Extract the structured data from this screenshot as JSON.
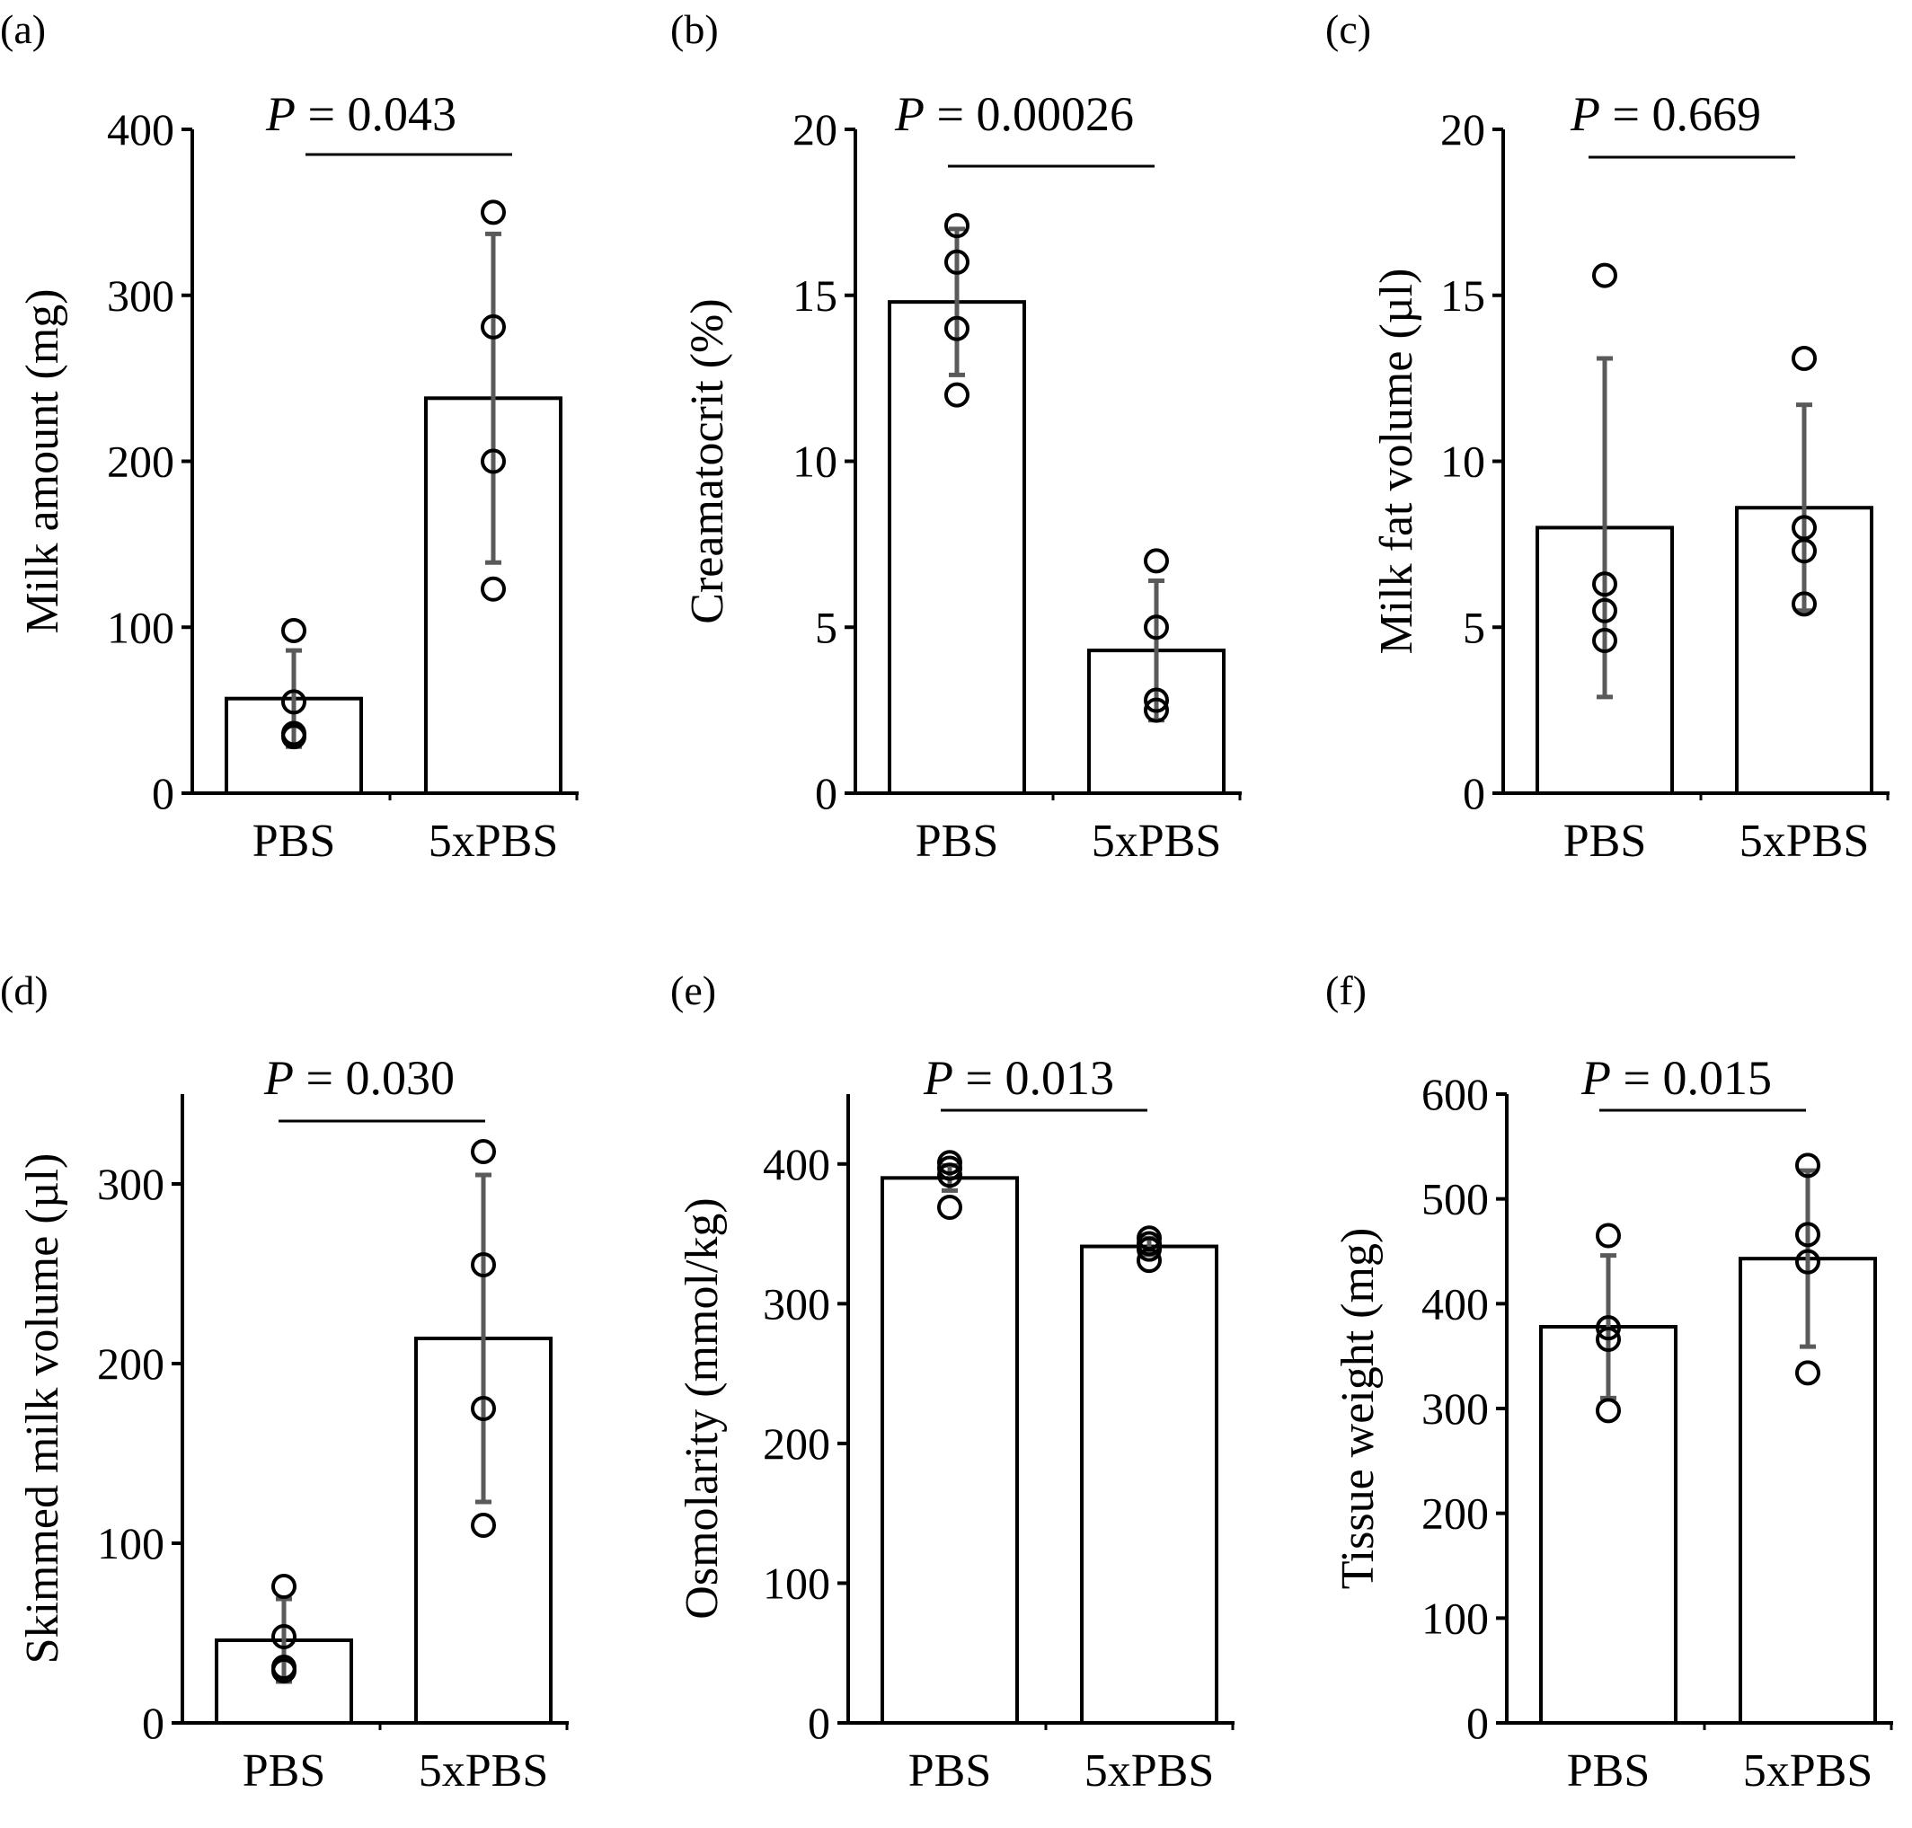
{
  "styles": {
    "bar_fill": "#ffffff",
    "bar_stroke": "#000000",
    "errorbar_color": "#5a5a5a",
    "point_stroke": "#000000"
  },
  "chart_data": [
    {
      "panel": "(a)",
      "type": "bar",
      "categories": [
        "PBS",
        "5xPBS"
      ],
      "values": [
        57,
        238
      ],
      "errors": [
        29,
        99
      ],
      "points": [
        [
          98,
          55,
          36,
          34
        ],
        [
          350,
          281,
          200,
          123
        ]
      ],
      "ylabel": "Milk amount (mg)",
      "ylim": [
        0,
        400
      ],
      "yticks": [
        0,
        100,
        200,
        300,
        400
      ],
      "pvalue": {
        "prefix": "P",
        "text": " = 0.043"
      }
    },
    {
      "panel": "(b)",
      "type": "bar",
      "categories": [
        "PBS",
        "5xPBS"
      ],
      "values": [
        14.8,
        4.3
      ],
      "errors": [
        2.2,
        2.1
      ],
      "points": [
        [
          17.1,
          16.0,
          14.0,
          12.0
        ],
        [
          7.0,
          5.0,
          2.8,
          2.5
        ]
      ],
      "ylabel": "Creamatocrit (%)",
      "ylim": [
        0,
        20
      ],
      "yticks": [
        0,
        5,
        10,
        15,
        20
      ],
      "pvalue": {
        "prefix": "P",
        "text": " = 0.00026"
      }
    },
    {
      "panel": "(c)",
      "type": "bar",
      "categories": [
        "PBS",
        "5xPBS"
      ],
      "values": [
        8.0,
        8.6
      ],
      "errors": [
        5.1,
        3.1
      ],
      "points": [
        [
          15.6,
          6.3,
          5.5,
          4.6
        ],
        [
          13.1,
          8.0,
          7.3,
          5.7
        ]
      ],
      "ylabel": "Milk fat volume (µl)",
      "ylim": [
        0,
        20
      ],
      "yticks": [
        0,
        5,
        10,
        15,
        20
      ],
      "pvalue": {
        "prefix": "P",
        "text": " = 0.669"
      }
    },
    {
      "panel": "(d)",
      "type": "bar",
      "categories": [
        "PBS",
        "5xPBS"
      ],
      "values": [
        46,
        214
      ],
      "errors": [
        23,
        91
      ],
      "points": [
        [
          76,
          48,
          29,
          31
        ],
        [
          318,
          255,
          175,
          110
        ]
      ],
      "ylabel": "Skimmed milk volume (µl)",
      "ylim": [
        0,
        350
      ],
      "yticks": [
        0,
        100,
        200,
        300
      ],
      "pvalue": {
        "prefix": "P",
        "text": " = 0.030"
      }
    },
    {
      "panel": "(e)",
      "type": "bar",
      "categories": [
        "PBS",
        "5xPBS"
      ],
      "values": [
        390,
        341
      ],
      "errors": [
        9,
        6
      ],
      "points": [
        [
          401,
          397,
          392,
          369
        ],
        [
          347,
          343,
          339,
          331
        ]
      ],
      "ylabel": "Osmolarity (mmol/kg)",
      "ylim": [
        0,
        450
      ],
      "yticks": [
        0,
        100,
        200,
        300,
        400
      ],
      "pvalue": {
        "prefix": "P",
        "text": " = 0.013"
      }
    },
    {
      "panel": "(f)",
      "type": "bar",
      "categories": [
        "PBS",
        "5xPBS"
      ],
      "values": [
        378,
        443
      ],
      "errors": [
        68,
        84
      ],
      "points": [
        [
          465,
          377,
          366,
          298
        ],
        [
          532,
          466,
          440,
          334
        ]
      ],
      "ylabel": "Tissue weight (mg)",
      "ylim": [
        0,
        600
      ],
      "yticks": [
        0,
        100,
        200,
        300,
        400,
        500,
        600
      ],
      "pvalue": {
        "prefix": "P",
        "text": " = 0.015"
      }
    }
  ]
}
